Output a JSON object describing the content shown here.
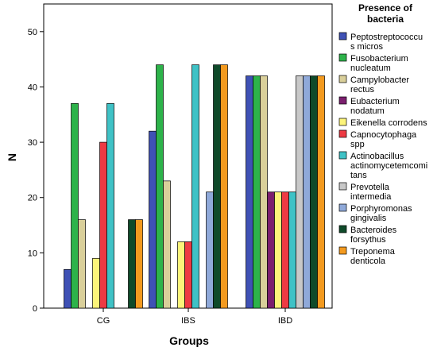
{
  "chart_data": {
    "type": "bar",
    "xlabel": "Groups",
    "ylabel": "N",
    "ylim": [
      0,
      55
    ],
    "yticks": [
      0,
      10,
      20,
      30,
      40,
      50
    ],
    "grid": false,
    "categories": [
      "CG",
      "IBS",
      "IBD"
    ],
    "legend": {
      "title_lines": [
        "Presence of",
        "bacteria"
      ],
      "placement": "right"
    },
    "series": [
      {
        "name": "Peptostreptococcus micros",
        "label_lines": [
          "Peptostreptococcu",
          "s micros"
        ],
        "color": "#3f51b5",
        "values": [
          7,
          32,
          42
        ]
      },
      {
        "name": "Fusobacterium nucleatum",
        "label_lines": [
          "Fusobacterium",
          "nucleatum"
        ],
        "color": "#2db34a",
        "values": [
          37,
          44,
          42
        ]
      },
      {
        "name": "Campylobacter rectus",
        "label_lines": [
          "Campylobacter",
          "rectus"
        ],
        "color": "#d9cf9a",
        "values": [
          16,
          23,
          42
        ]
      },
      {
        "name": "Eubacterium nodatum",
        "label_lines": [
          "Eubacterium",
          "nodatum"
        ],
        "color": "#7b1f6e",
        "values": [
          0,
          0,
          21
        ]
      },
      {
        "name": "Eikenella corrodens",
        "label_lines": [
          "Eikenella corrodens"
        ],
        "color": "#fcf47a",
        "values": [
          9,
          12,
          21
        ]
      },
      {
        "name": "Capnocytophaga spp",
        "label_lines": [
          "Capnocytophaga",
          "spp"
        ],
        "color": "#ee3a43",
        "values": [
          30,
          12,
          21
        ]
      },
      {
        "name": "Actinobacillus actinomycetemcomitans",
        "label_lines": [
          "Actinobacillus",
          "actinomycetemcomi",
          "tans"
        ],
        "color": "#3fc2c6",
        "values": [
          37,
          44,
          21
        ]
      },
      {
        "name": "Prevotella intermedia",
        "label_lines": [
          "Prevotella",
          "intermedia"
        ],
        "color": "#c8c8c8",
        "values": [
          0,
          0,
          42
        ]
      },
      {
        "name": "Porphyromonas gingivalis",
        "label_lines": [
          "Porphyromonas",
          "gingivalis"
        ],
        "color": "#8fa9d9",
        "values": [
          0,
          21,
          42
        ]
      },
      {
        "name": "Bacteroides forsythus",
        "label_lines": [
          "Bacteroides",
          "forsythus"
        ],
        "color": "#0f4a2a",
        "values": [
          16,
          44,
          42
        ]
      },
      {
        "name": "Treponema denticola",
        "label_lines": [
          "Treponema",
          "denticola"
        ],
        "color": "#f39a1f",
        "values": [
          16,
          44,
          42
        ]
      }
    ]
  }
}
